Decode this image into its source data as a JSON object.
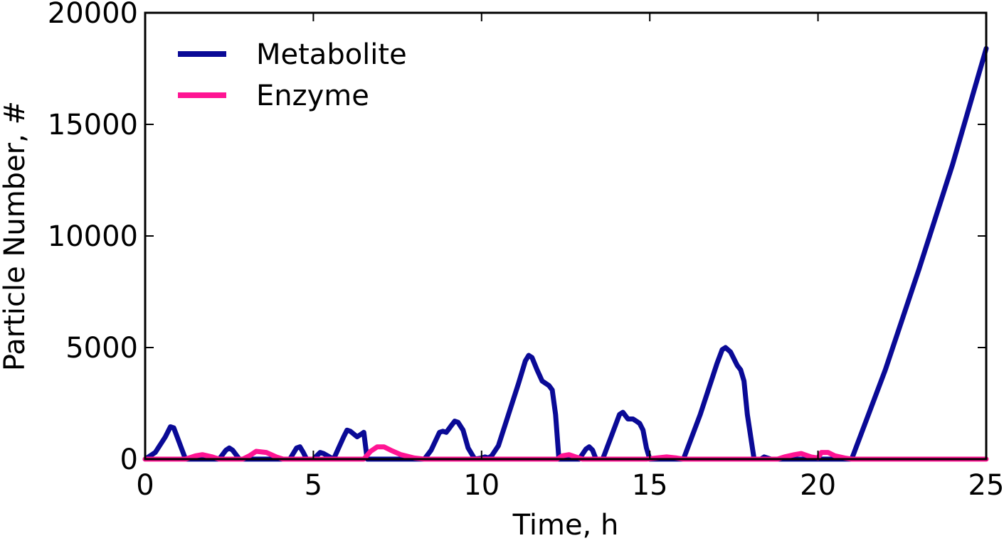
{
  "chart_data": {
    "type": "line",
    "title": "",
    "xlabel": "Time, h",
    "ylabel": "Particle Number, #",
    "xlim": [
      0,
      25
    ],
    "ylim": [
      0,
      20000
    ],
    "xticks": [
      0,
      5,
      10,
      15,
      20,
      25
    ],
    "yticks": [
      0,
      5000,
      10000,
      15000,
      20000
    ],
    "grid": false,
    "legend": {
      "position": "top-left",
      "frame": false
    },
    "series": [
      {
        "name": "Metabolite",
        "color": "#0a0a96",
        "x": [
          0,
          0.3,
          0.6,
          0.75,
          0.85,
          1.0,
          1.2,
          2.2,
          2.4,
          2.5,
          2.6,
          2.8,
          4.3,
          4.5,
          4.6,
          4.7,
          4.8,
          5.0,
          5.2,
          5.3,
          5.6,
          5.9,
          6.0,
          6.1,
          6.3,
          6.4,
          6.5,
          6.6,
          8.3,
          8.5,
          8.75,
          8.85,
          8.95,
          9.1,
          9.2,
          9.3,
          9.45,
          9.6,
          9.8,
          10.0,
          10.1,
          10.2,
          10.3,
          10.5,
          10.8,
          11.1,
          11.3,
          11.4,
          11.5,
          11.65,
          11.8,
          12.0,
          12.1,
          12.2,
          12.3,
          12.9,
          13.1,
          13.2,
          13.3,
          13.4,
          13.6,
          13.9,
          14.1,
          14.2,
          14.35,
          14.5,
          14.6,
          14.7,
          14.8,
          14.9,
          15.0,
          15.2,
          15.8,
          16.0,
          16.5,
          17.0,
          17.15,
          17.25,
          17.4,
          17.6,
          17.7,
          17.8,
          17.9,
          18.1,
          18.3,
          18.4,
          18.5,
          18.6,
          20.8,
          21.0,
          22.0,
          23.0,
          24.0,
          25.0
        ],
        "y": [
          0,
          300,
          1000,
          1450,
          1400,
          800,
          0,
          0,
          400,
          500,
          400,
          0,
          0,
          500,
          550,
          300,
          0,
          0,
          300,
          250,
          0,
          1000,
          1300,
          1250,
          1000,
          1100,
          1200,
          0,
          0,
          400,
          1200,
          1250,
          1200,
          1500,
          1700,
          1650,
          1300,
          500,
          0,
          50,
          100,
          50,
          150,
          600,
          2000,
          3400,
          4400,
          4650,
          4550,
          4000,
          3500,
          3300,
          3100,
          2000,
          0,
          0,
          450,
          550,
          400,
          0,
          0,
          1200,
          2000,
          2100,
          1800,
          1800,
          1700,
          1600,
          1300,
          500,
          0,
          0,
          0,
          0,
          2000,
          4300,
          4900,
          5000,
          4800,
          4200,
          4000,
          3500,
          2000,
          0,
          0,
          100,
          50,
          0,
          0,
          0,
          4000,
          8500,
          13200,
          18400
        ]
      },
      {
        "name": "Enzyme",
        "color": "#ff1493",
        "x": [
          0,
          1.2,
          1.5,
          1.7,
          2.0,
          2.2,
          2.9,
          3.1,
          3.3,
          3.6,
          3.9,
          4.1,
          6.5,
          6.7,
          6.9,
          7.1,
          7.3,
          7.6,
          8.0,
          8.3,
          12.25,
          12.4,
          12.6,
          12.8,
          13.0,
          14.9,
          15.2,
          15.5,
          15.8,
          16.0,
          18.8,
          19.0,
          19.3,
          19.5,
          19.8,
          20.0,
          20.1,
          20.3,
          20.5,
          20.8,
          21.0,
          25.0
        ],
        "y": [
          0,
          0,
          150,
          200,
          100,
          0,
          0,
          150,
          350,
          300,
          100,
          0,
          0,
          350,
          550,
          550,
          400,
          200,
          50,
          0,
          0,
          150,
          200,
          100,
          0,
          0,
          50,
          100,
          50,
          0,
          0,
          100,
          200,
          250,
          100,
          50,
          300,
          300,
          150,
          50,
          0,
          0
        ]
      }
    ]
  }
}
